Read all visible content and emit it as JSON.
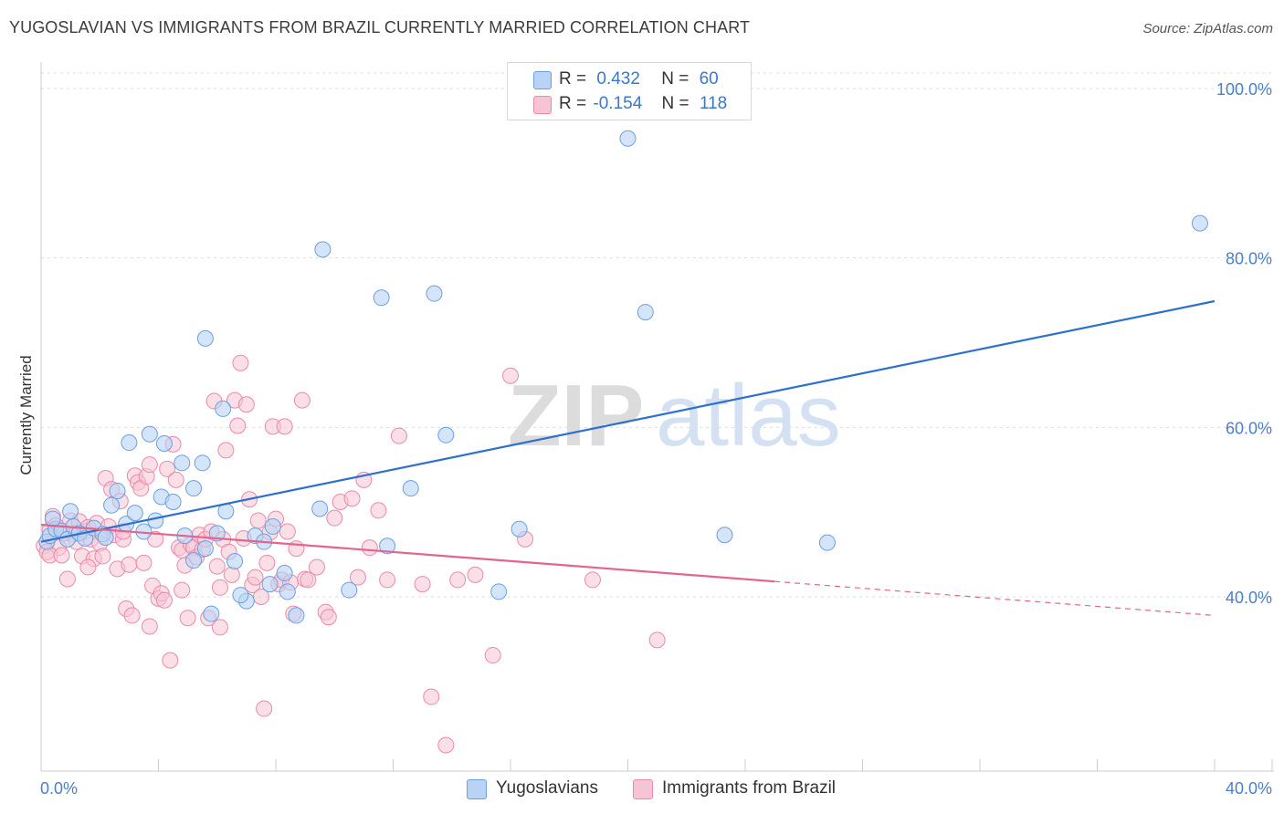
{
  "header": {
    "title": "YUGOSLAVIAN VS IMMIGRANTS FROM BRAZIL CURRENTLY MARRIED CORRELATION CHART",
    "source": "Source: ZipAtlas.com"
  },
  "legend": {
    "rows": [
      {
        "r_label": "R =",
        "r_value": "0.432",
        "n_label": "N =",
        "n_value": "60"
      },
      {
        "r_label": "R =",
        "r_value": "-0.154",
        "n_label": "N =",
        "n_value": "118"
      }
    ]
  },
  "bottom_legend": {
    "items": [
      {
        "label": "Yugoslavians"
      },
      {
        "label": "Immigrants from Brazil"
      }
    ]
  },
  "watermark": {
    "zip": "ZIP",
    "atlas": "atlas"
  },
  "colors": {
    "blue_fill": "#b8d3f5",
    "blue_stroke": "#6d9fe0",
    "blue_line": "#2e6fcf",
    "pink_fill": "#f7c4d4",
    "pink_stroke": "#e98aa9",
    "pink_line": "#e2648f",
    "tick_text": "#4a7fc9",
    "grid": "#dddddd"
  },
  "chart_data": {
    "type": "scatter",
    "title": "YUGOSLAVIAN VS IMMIGRANTS FROM BRAZIL CURRENTLY MARRIED CORRELATION CHART",
    "xlabel": "",
    "ylabel": "Currently Married",
    "xlim": [
      0,
      40
    ],
    "ylim": [
      22,
      102
    ],
    "x_tick_labels": [
      "0.0%",
      "40.0%"
    ],
    "y_tick_labels": [
      "100.0%",
      "80.0%",
      "60.0%",
      "40.0%"
    ],
    "y_ticks": [
      100,
      80,
      60,
      40
    ],
    "grid": true,
    "legend_position": "top-center",
    "series": [
      {
        "name": "Yugoslavians",
        "r": 0.432,
        "n": 60,
        "trend": {
          "x": [
            0,
            40
          ],
          "y": [
            46.5,
            74.9
          ],
          "dashed_from": null
        },
        "points": [
          [
            0.2,
            46.5
          ],
          [
            0.3,
            47.2
          ],
          [
            0.5,
            48.0
          ],
          [
            0.7,
            47.8
          ],
          [
            0.9,
            46.8
          ],
          [
            1.1,
            48.3
          ],
          [
            1.3,
            47.5
          ],
          [
            1.5,
            46.9
          ],
          [
            1.8,
            48.1
          ],
          [
            2.1,
            47.4
          ],
          [
            2.4,
            50.8
          ],
          [
            2.6,
            52.5
          ],
          [
            2.9,
            48.6
          ],
          [
            3.2,
            49.9
          ],
          [
            3.5,
            47.7
          ],
          [
            3.9,
            49.0
          ],
          [
            4.1,
            51.8
          ],
          [
            4.5,
            51.2
          ],
          [
            4.9,
            47.2
          ],
          [
            5.2,
            44.3
          ],
          [
            5.6,
            45.7
          ],
          [
            6.0,
            47.5
          ],
          [
            6.3,
            50.1
          ],
          [
            6.6,
            44.2
          ],
          [
            7.0,
            39.5
          ],
          [
            7.3,
            47.2
          ],
          [
            7.6,
            46.5
          ],
          [
            7.9,
            48.3
          ],
          [
            8.3,
            42.8
          ],
          [
            8.7,
            37.8
          ],
          [
            3.0,
            58.2
          ],
          [
            3.7,
            59.2
          ],
          [
            4.2,
            58.1
          ],
          [
            4.8,
            55.8
          ],
          [
            5.5,
            55.8
          ],
          [
            5.2,
            52.8
          ],
          [
            6.2,
            62.2
          ],
          [
            5.6,
            70.5
          ],
          [
            9.6,
            81.0
          ],
          [
            11.6,
            75.3
          ],
          [
            13.4,
            75.8
          ],
          [
            13.8,
            59.1
          ],
          [
            12.6,
            52.8
          ],
          [
            9.5,
            50.4
          ],
          [
            10.5,
            40.8
          ],
          [
            11.8,
            46.0
          ],
          [
            15.6,
            40.6
          ],
          [
            16.3,
            48.0
          ],
          [
            20.6,
            73.6
          ],
          [
            20.0,
            94.1
          ],
          [
            23.3,
            47.3
          ],
          [
            26.8,
            46.4
          ],
          [
            39.5,
            84.1
          ],
          [
            0.4,
            49.2
          ],
          [
            1.0,
            50.1
          ],
          [
            2.2,
            47.0
          ],
          [
            6.8,
            40.2
          ],
          [
            7.8,
            41.5
          ],
          [
            5.8,
            38.0
          ],
          [
            8.4,
            40.6
          ]
        ]
      },
      {
        "name": "Immigrants from Brazil",
        "r": -0.154,
        "n": 118,
        "trend": {
          "x": [
            0,
            40
          ],
          "y": [
            48.5,
            37.8
          ],
          "solid_until_x": 25.0
        },
        "points": [
          [
            0.1,
            46.0
          ],
          [
            0.2,
            45.3
          ],
          [
            0.3,
            47.9
          ],
          [
            0.4,
            49.5
          ],
          [
            0.5,
            48.4
          ],
          [
            0.6,
            45.8
          ],
          [
            0.8,
            47.5
          ],
          [
            0.9,
            42.1
          ],
          [
            1.0,
            49.0
          ],
          [
            1.1,
            47.4
          ],
          [
            1.2,
            46.5
          ],
          [
            1.3,
            48.9
          ],
          [
            1.4,
            44.8
          ],
          [
            1.5,
            47.7
          ],
          [
            1.6,
            48.2
          ],
          [
            1.7,
            46.8
          ],
          [
            1.8,
            44.5
          ],
          [
            1.9,
            48.7
          ],
          [
            2.0,
            46.3
          ],
          [
            2.1,
            44.8
          ],
          [
            2.2,
            54.0
          ],
          [
            2.3,
            48.3
          ],
          [
            2.4,
            52.7
          ],
          [
            2.5,
            47.3
          ],
          [
            2.6,
            43.3
          ],
          [
            2.7,
            51.3
          ],
          [
            2.8,
            46.8
          ],
          [
            2.9,
            38.6
          ],
          [
            3.0,
            43.8
          ],
          [
            3.1,
            37.8
          ],
          [
            3.2,
            54.3
          ],
          [
            3.3,
            53.5
          ],
          [
            3.4,
            52.8
          ],
          [
            3.5,
            44.0
          ],
          [
            3.6,
            54.2
          ],
          [
            3.7,
            55.6
          ],
          [
            3.8,
            41.3
          ],
          [
            3.9,
            46.8
          ],
          [
            4.0,
            39.8
          ],
          [
            4.1,
            40.4
          ],
          [
            4.2,
            39.6
          ],
          [
            4.3,
            55.1
          ],
          [
            4.4,
            32.5
          ],
          [
            4.5,
            58.0
          ],
          [
            4.6,
            53.8
          ],
          [
            4.7,
            45.8
          ],
          [
            4.8,
            45.5
          ],
          [
            4.9,
            43.7
          ],
          [
            5.0,
            37.5
          ],
          [
            5.1,
            46.2
          ],
          [
            5.2,
            45.8
          ],
          [
            5.3,
            44.7
          ],
          [
            5.4,
            47.3
          ],
          [
            5.5,
            45.6
          ],
          [
            5.6,
            46.8
          ],
          [
            5.7,
            37.5
          ],
          [
            5.8,
            47.7
          ],
          [
            5.9,
            63.1
          ],
          [
            6.0,
            43.6
          ],
          [
            6.1,
            41.1
          ],
          [
            6.2,
            46.8
          ],
          [
            6.3,
            57.3
          ],
          [
            6.4,
            45.3
          ],
          [
            6.5,
            42.6
          ],
          [
            6.6,
            63.2
          ],
          [
            6.7,
            60.2
          ],
          [
            6.8,
            67.6
          ],
          [
            6.9,
            46.9
          ],
          [
            7.0,
            62.7
          ],
          [
            7.1,
            51.5
          ],
          [
            7.2,
            41.4
          ],
          [
            7.3,
            42.3
          ],
          [
            7.4,
            49.0
          ],
          [
            7.5,
            40.0
          ],
          [
            7.6,
            26.8
          ],
          [
            7.7,
            44.0
          ],
          [
            7.8,
            47.6
          ],
          [
            7.9,
            60.1
          ],
          [
            8.0,
            49.2
          ],
          [
            8.1,
            41.5
          ],
          [
            8.2,
            42.0
          ],
          [
            8.3,
            60.1
          ],
          [
            8.4,
            47.7
          ],
          [
            8.5,
            41.7
          ],
          [
            8.6,
            38.0
          ],
          [
            8.7,
            45.7
          ],
          [
            8.9,
            63.2
          ],
          [
            9.0,
            42.1
          ],
          [
            9.1,
            42.0
          ],
          [
            9.4,
            43.5
          ],
          [
            9.7,
            38.2
          ],
          [
            10.0,
            49.3
          ],
          [
            10.2,
            51.2
          ],
          [
            10.6,
            51.6
          ],
          [
            10.8,
            42.3
          ],
          [
            11.0,
            53.8
          ],
          [
            11.2,
            45.8
          ],
          [
            11.5,
            50.2
          ],
          [
            11.8,
            42.0
          ],
          [
            12.2,
            59.0
          ],
          [
            13.0,
            41.5
          ],
          [
            13.3,
            28.2
          ],
          [
            13.8,
            22.5
          ],
          [
            14.2,
            42.0
          ],
          [
            14.8,
            42.6
          ],
          [
            15.4,
            33.1
          ],
          [
            16.0,
            66.1
          ],
          [
            16.5,
            46.8
          ],
          [
            18.8,
            42.0
          ],
          [
            21.0,
            34.9
          ],
          [
            0.3,
            44.9
          ],
          [
            0.7,
            44.9
          ],
          [
            1.6,
            43.5
          ],
          [
            2.8,
            47.7
          ],
          [
            3.7,
            36.5
          ],
          [
            4.8,
            40.8
          ],
          [
            6.1,
            36.4
          ],
          [
            9.8,
            37.6
          ]
        ]
      }
    ]
  }
}
